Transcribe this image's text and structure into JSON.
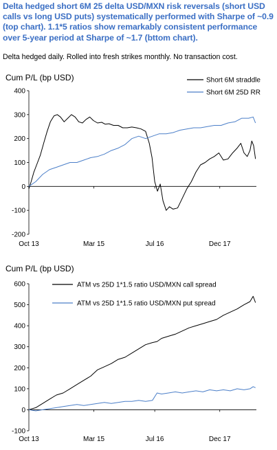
{
  "header": {
    "title": "Delta hedged short 6M 25 delta USD/MXN risk reversals (short USD calls vs long USD puts) systematically performed with Sharpe of ~0.9 (top chart). 1.1*5 ratios show remarkably consistent performance over 5-year period at Sharpe of ~1.7 (bttom chart).",
    "note": "Delta hedged daily. Rolled into fresh strikes monthly. No transaction cost."
  },
  "colors": {
    "black": "#000000",
    "blue": "#4a7ec8"
  },
  "chart_data": [
    {
      "type": "line",
      "title": "",
      "ylabel": "Cum P/L (bp USD)",
      "xlabel": "",
      "ylim": [
        -200,
        400
      ],
      "yticks": [
        -200,
        -100,
        0,
        100,
        200,
        300,
        400
      ],
      "xlim": [
        2013.75,
        2018.72
      ],
      "xticks": [
        {
          "label": "Oct 13",
          "x": 2013.75
        },
        {
          "label": "Mar 15",
          "x": 2015.17
        },
        {
          "label": "Jul 16",
          "x": 2016.5
        },
        {
          "label": "Dec 17",
          "x": 2017.92
        }
      ],
      "legend": "top-right",
      "series": [
        {
          "name": "Short 6M straddle",
          "color": "#000000",
          "x": [
            2013.75,
            2013.8,
            2013.86,
            2013.92,
            2014.0,
            2014.08,
            2014.15,
            2014.22,
            2014.3,
            2014.37,
            2014.44,
            2014.52,
            2014.6,
            2014.68,
            2014.76,
            2014.84,
            2014.92,
            2015.0,
            2015.08,
            2015.16,
            2015.25,
            2015.34,
            2015.42,
            2015.5,
            2015.6,
            2015.7,
            2015.8,
            2015.9,
            2016.0,
            2016.1,
            2016.2,
            2016.3,
            2016.38,
            2016.44,
            2016.5,
            2016.56,
            2016.62,
            2016.68,
            2016.75,
            2016.82,
            2016.9,
            2017.0,
            2017.1,
            2017.2,
            2017.3,
            2017.4,
            2017.5,
            2017.6,
            2017.7,
            2017.8,
            2017.9,
            2018.0,
            2018.1,
            2018.2,
            2018.3,
            2018.38,
            2018.45,
            2018.52,
            2018.58,
            2018.62,
            2018.66,
            2018.7
          ],
          "values": [
            -10,
            20,
            60,
            90,
            130,
            185,
            230,
            270,
            295,
            300,
            290,
            270,
            285,
            300,
            290,
            270,
            265,
            280,
            290,
            275,
            265,
            268,
            260,
            262,
            255,
            255,
            245,
            245,
            248,
            245,
            240,
            230,
            180,
            120,
            20,
            -20,
            10,
            -60,
            -100,
            -85,
            -95,
            -90,
            -50,
            -10,
            20,
            60,
            90,
            100,
            115,
            125,
            140,
            110,
            115,
            140,
            160,
            180,
            140,
            125,
            150,
            190,
            170,
            115
          ]
        },
        {
          "name": "Short 6M 25D RR",
          "color": "#4a7ec8",
          "x": [
            2013.75,
            2013.9,
            2014.05,
            2014.2,
            2014.35,
            2014.5,
            2014.65,
            2014.8,
            2014.95,
            2015.1,
            2015.25,
            2015.4,
            2015.55,
            2015.7,
            2015.85,
            2016.0,
            2016.15,
            2016.3,
            2016.45,
            2016.6,
            2016.75,
            2016.9,
            2017.05,
            2017.2,
            2017.35,
            2017.5,
            2017.65,
            2017.8,
            2017.95,
            2018.1,
            2018.25,
            2018.4,
            2018.55,
            2018.65,
            2018.7
          ],
          "values": [
            0,
            20,
            50,
            70,
            80,
            90,
            100,
            100,
            110,
            120,
            125,
            135,
            150,
            160,
            175,
            200,
            210,
            200,
            210,
            220,
            220,
            225,
            235,
            240,
            245,
            245,
            250,
            255,
            255,
            265,
            270,
            285,
            285,
            290,
            265
          ]
        }
      ]
    },
    {
      "type": "line",
      "title": "",
      "ylabel": "Cum P/L (bp USD)",
      "xlabel": "",
      "ylim": [
        -100,
        600
      ],
      "yticks": [
        -100,
        0,
        100,
        200,
        300,
        400,
        500,
        600
      ],
      "xlim": [
        2013.75,
        2018.72
      ],
      "xticks": [
        {
          "label": "Oct 13",
          "x": 2013.75
        },
        {
          "label": "Mar 15",
          "x": 2015.17
        },
        {
          "label": "Jul 16",
          "x": 2016.5
        },
        {
          "label": "Dec 17",
          "x": 2017.92
        }
      ],
      "legend": "top-left",
      "series": [
        {
          "name": "ATM vs 25D 1*1.5 ratio USD/MXN call spread",
          "color": "#000000",
          "x": [
            2013.75,
            2013.9,
            2014.05,
            2014.2,
            2014.35,
            2014.5,
            2014.65,
            2014.8,
            2014.95,
            2015.1,
            2015.25,
            2015.4,
            2015.55,
            2015.7,
            2015.85,
            2016.0,
            2016.15,
            2016.3,
            2016.45,
            2016.55,
            2016.65,
            2016.8,
            2016.95,
            2017.1,
            2017.25,
            2017.4,
            2017.55,
            2017.7,
            2017.85,
            2018.0,
            2018.15,
            2018.3,
            2018.45,
            2018.58,
            2018.65,
            2018.7
          ],
          "values": [
            0,
            10,
            30,
            50,
            70,
            80,
            100,
            120,
            140,
            160,
            190,
            205,
            220,
            240,
            250,
            270,
            290,
            310,
            320,
            325,
            340,
            350,
            360,
            375,
            390,
            400,
            410,
            420,
            430,
            450,
            465,
            480,
            500,
            515,
            540,
            510
          ]
        },
        {
          "name": "ATM vs 25D 1*1.5 ratio USD/MXN put spread",
          "color": "#4a7ec8",
          "x": [
            2013.75,
            2013.9,
            2014.05,
            2014.2,
            2014.35,
            2014.5,
            2014.65,
            2014.8,
            2014.95,
            2015.1,
            2015.25,
            2015.4,
            2015.55,
            2015.7,
            2015.85,
            2016.0,
            2016.15,
            2016.3,
            2016.45,
            2016.55,
            2016.65,
            2016.8,
            2016.95,
            2017.1,
            2017.25,
            2017.4,
            2017.55,
            2017.7,
            2017.85,
            2018.0,
            2018.15,
            2018.3,
            2018.45,
            2018.58,
            2018.65,
            2018.7
          ],
          "values": [
            0,
            -5,
            0,
            5,
            10,
            15,
            20,
            25,
            20,
            25,
            30,
            35,
            30,
            35,
            40,
            40,
            45,
            40,
            45,
            80,
            75,
            80,
            85,
            80,
            85,
            90,
            85,
            95,
            90,
            95,
            90,
            100,
            95,
            100,
            110,
            105
          ]
        }
      ]
    }
  ]
}
